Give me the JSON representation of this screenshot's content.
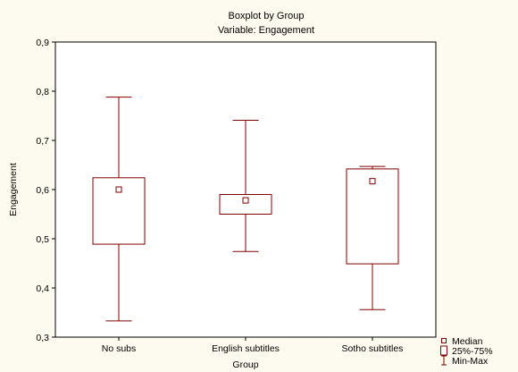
{
  "chart_data": {
    "type": "boxplot",
    "title": "Boxplot by Group",
    "subtitle": "Variable: Engagement",
    "xlabel": "Group",
    "ylabel": "Engagement",
    "ylim": [
      0.3,
      0.9
    ],
    "yticks": [
      0.3,
      0.4,
      0.5,
      0.6,
      0.7,
      0.8,
      0.9
    ],
    "ytick_labels": [
      "0,3",
      "0,4",
      "0,5",
      "0,6",
      "0,7",
      "0,8",
      "0,9"
    ],
    "categories": [
      "No subs",
      "English subtitles",
      "Sotho subtitles"
    ],
    "groups": [
      {
        "category": "No subs",
        "min": 0.333,
        "q1": 0.489,
        "median": 0.6,
        "q3": 0.624,
        "max": 0.788
      },
      {
        "category": "English subtitles",
        "min": 0.474,
        "q1": 0.55,
        "median": 0.578,
        "q3": 0.59,
        "max": 0.741
      },
      {
        "category": "Sotho subtitles",
        "min": 0.356,
        "q1": 0.449,
        "median": 0.617,
        "q3": 0.642,
        "max": 0.647
      }
    ],
    "legend": {
      "position": "bottom-right",
      "items": [
        "Median",
        "25%-75%",
        "Min-Max"
      ]
    },
    "grid": false,
    "colors": {
      "marks": "#800000",
      "plot_background": "#ffffff",
      "page_background": "#fdfbf0"
    }
  }
}
